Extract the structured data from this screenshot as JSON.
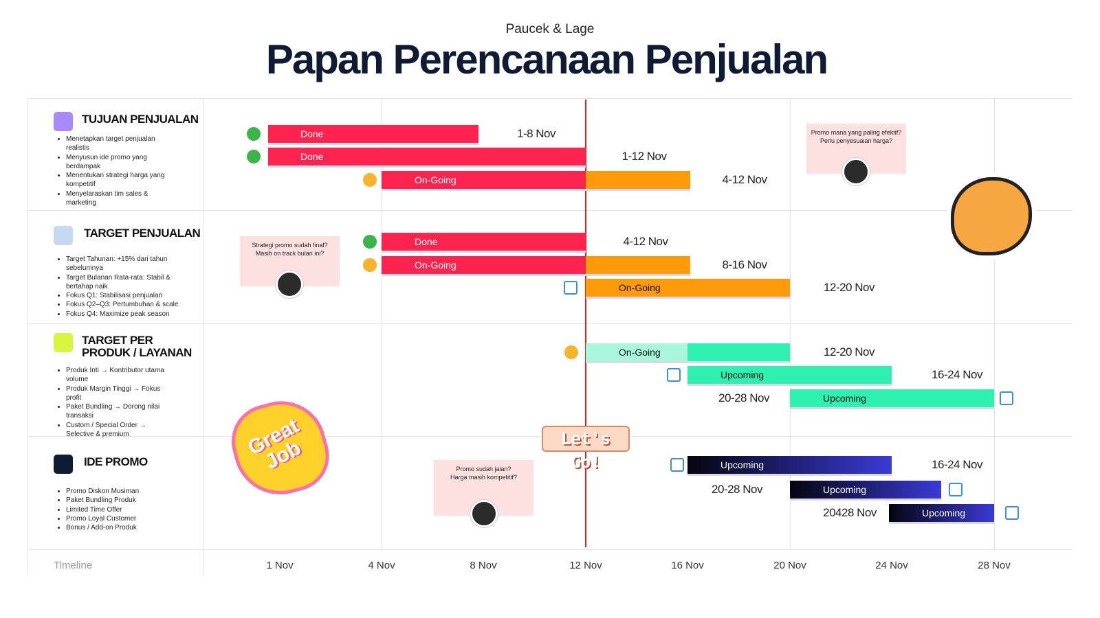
{
  "header": {
    "subtitle": "Paucek & Lage",
    "title": "Papan Perencanaan Penjualan"
  },
  "sections": [
    {
      "title": "TUJUAN PENJUALAN",
      "items": [
        "Menetapkan target penjualan realistis",
        "Menyusun ide promo yang berdampak",
        "Menentukan strategi harga yang kompetitif",
        "Menyelaraskan tim sales & marketing"
      ],
      "tasks": [
        {
          "status": "Done",
          "range": "1-8 Nov"
        },
        {
          "status": "Done",
          "range": "1-12 Nov"
        },
        {
          "status": "On-Going",
          "range": "4-12 Nov"
        }
      ]
    },
    {
      "title": "TARGET PENJUALAN",
      "items": [
        "Target Tahunan: +15% dari tahun sebelumnya",
        "Target Bulanan Rata-rata: Stabil & bertahap naik",
        "Fokus Q1: Stabilisasi penjualan",
        "Fokus Q2–Q3: Pertumbuhan & scale",
        "Fokus Q4: Maximize peak season"
      ],
      "tasks": [
        {
          "status": "Done",
          "range": "4-12 Nov"
        },
        {
          "status": "On-Going",
          "range": "8-16 Nov"
        },
        {
          "status": "On-Going",
          "range": "12-20 Nov"
        }
      ]
    },
    {
      "title": "TARGET PER PRODUK / LAYANAN",
      "items": [
        "Produk Inti → Kontributor utama volume",
        "Produk Margin Tinggi → Fokus profit",
        "Paket Bundling → Dorong nilai transaksi",
        "Custom / Special Order → Selective & premium"
      ],
      "tasks": [
        {
          "status": "On-Going",
          "range": "12-20 Nov"
        },
        {
          "status": "Upcoming",
          "range": "16-24 Nov"
        },
        {
          "status": "Upcoming",
          "range": "20-28 Nov"
        }
      ]
    },
    {
      "title": "IDE PROMO",
      "items": [
        "Promo Diskon Musiman",
        "Paket Bundling Produk",
        "Limited Time Offer",
        "Promo Loyal Customer",
        "Bonus / Add-on Produk"
      ],
      "tasks": [
        {
          "status": "Upcoming",
          "range": "16-24 Nov"
        },
        {
          "status": "Upcoming",
          "range": "20-28 Nov"
        },
        {
          "status": "Upcoming",
          "range": "20428 Nov"
        }
      ]
    }
  ],
  "notes": [
    [
      "Promo mana yang paling efektif?",
      "Perlu penyesuaian harga?"
    ],
    [
      "Strategi promo sudah final?",
      "Masih on track bulan ini?"
    ],
    [
      "Promo sudah jalan?",
      "Harga masih kompetitif?"
    ]
  ],
  "stickers": {
    "great": "Great Job",
    "go": "Let's Go!"
  },
  "timeline": {
    "label": "Timeline",
    "ticks": [
      "1 Nov",
      "4 Nov",
      "8 Nov",
      "12 Nov",
      "16 Nov",
      "20 Nov",
      "24 Nov",
      "28 Nov"
    ]
  }
}
